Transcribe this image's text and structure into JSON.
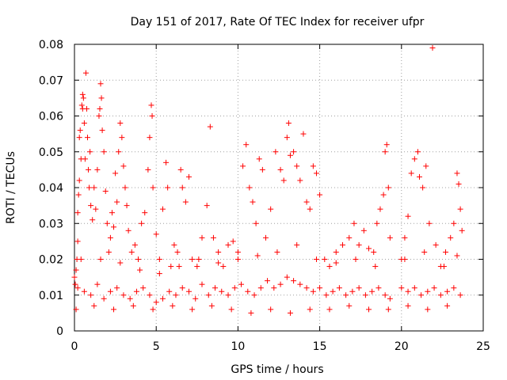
{
  "chart_data": {
    "type": "scatter",
    "title": "Day 151 of 2017, Rate Of TEC Index for receiver ufpr",
    "xlabel": "GPS time / hours",
    "ylabel": "ROTI / TECUs",
    "xlim": [
      0,
      25
    ],
    "ylim": [
      0,
      0.08
    ],
    "xticks": [
      0,
      5,
      10,
      15,
      20,
      25
    ],
    "xtick_labels": [
      "0",
      "5",
      "10",
      "15",
      "20",
      "25"
    ],
    "yticks": [
      0,
      0.01,
      0.02,
      0.03,
      0.04,
      0.05,
      0.06,
      0.07,
      0.08
    ],
    "ytick_labels": [
      "0",
      "0.01",
      "0.02",
      "0.03",
      "0.04",
      "0.05",
      "0.06",
      "0.07",
      "0.08"
    ],
    "grid": true,
    "marker": "plus",
    "series": [
      {
        "color": "#ff0000",
        "points": [
          [
            0.0,
            0.015
          ],
          [
            0.05,
            0.013
          ],
          [
            0.1,
            0.017
          ],
          [
            0.15,
            0.02
          ],
          [
            0.2,
            0.025
          ],
          [
            0.2,
            0.033
          ],
          [
            0.25,
            0.038
          ],
          [
            0.3,
            0.042
          ],
          [
            0.3,
            0.054
          ],
          [
            0.35,
            0.056
          ],
          [
            0.4,
            0.048
          ],
          [
            0.45,
            0.063
          ],
          [
            0.5,
            0.062
          ],
          [
            0.5,
            0.066
          ],
          [
            0.55,
            0.065
          ],
          [
            0.6,
            0.058
          ],
          [
            0.65,
            0.048
          ],
          [
            0.7,
            0.072
          ],
          [
            0.75,
            0.062
          ],
          [
            0.8,
            0.054
          ],
          [
            0.85,
            0.045
          ],
          [
            0.9,
            0.04
          ],
          [
            0.95,
            0.05
          ],
          [
            1.0,
            0.035
          ],
          [
            1.1,
            0.031
          ],
          [
            1.2,
            0.04
          ],
          [
            1.3,
            0.034
          ],
          [
            1.4,
            0.045
          ],
          [
            1.5,
            0.06
          ],
          [
            1.55,
            0.062
          ],
          [
            1.6,
            0.069
          ],
          [
            1.65,
            0.065
          ],
          [
            1.7,
            0.056
          ],
          [
            1.8,
            0.05
          ],
          [
            1.9,
            0.039
          ],
          [
            2.0,
            0.03
          ],
          [
            2.1,
            0.022
          ],
          [
            2.2,
            0.026
          ],
          [
            2.3,
            0.033
          ],
          [
            2.4,
            0.029
          ],
          [
            2.5,
            0.044
          ],
          [
            2.6,
            0.036
          ],
          [
            2.7,
            0.05
          ],
          [
            2.8,
            0.058
          ],
          [
            2.9,
            0.054
          ],
          [
            3.0,
            0.046
          ],
          [
            3.1,
            0.04
          ],
          [
            3.2,
            0.035
          ],
          [
            3.3,
            0.028
          ],
          [
            3.5,
            0.022
          ],
          [
            3.7,
            0.024
          ],
          [
            3.9,
            0.02
          ],
          [
            4.1,
            0.03
          ],
          [
            4.3,
            0.033
          ],
          [
            4.5,
            0.045
          ],
          [
            4.6,
            0.054
          ],
          [
            4.7,
            0.063
          ],
          [
            4.75,
            0.06
          ],
          [
            4.8,
            0.04
          ],
          [
            5.0,
            0.027
          ],
          [
            5.2,
            0.02
          ],
          [
            5.4,
            0.034
          ],
          [
            5.6,
            0.047
          ],
          [
            5.7,
            0.04
          ],
          [
            5.9,
            0.018
          ],
          [
            6.1,
            0.024
          ],
          [
            6.3,
            0.022
          ],
          [
            6.5,
            0.045
          ],
          [
            6.6,
            0.04
          ],
          [
            6.8,
            0.036
          ],
          [
            7.0,
            0.043
          ],
          [
            7.2,
            0.02
          ],
          [
            7.5,
            0.018
          ],
          [
            7.8,
            0.026
          ],
          [
            8.1,
            0.035
          ],
          [
            8.3,
            0.057
          ],
          [
            8.5,
            0.026
          ],
          [
            8.8,
            0.022
          ],
          [
            9.1,
            0.018
          ],
          [
            9.4,
            0.024
          ],
          [
            9.7,
            0.025
          ],
          [
            10.0,
            0.022
          ],
          [
            10.3,
            0.046
          ],
          [
            10.5,
            0.052
          ],
          [
            10.7,
            0.04
          ],
          [
            10.9,
            0.036
          ],
          [
            11.1,
            0.03
          ],
          [
            11.3,
            0.048
          ],
          [
            11.5,
            0.045
          ],
          [
            11.7,
            0.026
          ],
          [
            12.0,
            0.034
          ],
          [
            12.3,
            0.05
          ],
          [
            12.6,
            0.045
          ],
          [
            12.8,
            0.042
          ],
          [
            13.0,
            0.054
          ],
          [
            13.1,
            0.058
          ],
          [
            13.2,
            0.049
          ],
          [
            13.4,
            0.05
          ],
          [
            13.6,
            0.046
          ],
          [
            13.8,
            0.042
          ],
          [
            14.0,
            0.055
          ],
          [
            14.2,
            0.036
          ],
          [
            14.4,
            0.034
          ],
          [
            14.6,
            0.046
          ],
          [
            14.8,
            0.044
          ],
          [
            15.0,
            0.038
          ],
          [
            15.3,
            0.02
          ],
          [
            15.6,
            0.018
          ],
          [
            16.0,
            0.022
          ],
          [
            16.4,
            0.024
          ],
          [
            16.8,
            0.026
          ],
          [
            17.1,
            0.03
          ],
          [
            17.4,
            0.024
          ],
          [
            17.7,
            0.028
          ],
          [
            18.0,
            0.023
          ],
          [
            18.3,
            0.022
          ],
          [
            18.5,
            0.03
          ],
          [
            18.7,
            0.034
          ],
          [
            18.9,
            0.038
          ],
          [
            19.0,
            0.05
          ],
          [
            19.1,
            0.052
          ],
          [
            19.2,
            0.04
          ],
          [
            19.3,
            0.026
          ],
          [
            20.0,
            0.02
          ],
          [
            20.2,
            0.026
          ],
          [
            20.4,
            0.032
          ],
          [
            20.6,
            0.044
          ],
          [
            20.8,
            0.048
          ],
          [
            21.0,
            0.05
          ],
          [
            21.1,
            0.043
          ],
          [
            21.3,
            0.04
          ],
          [
            21.5,
            0.046
          ],
          [
            21.7,
            0.03
          ],
          [
            21.9,
            0.079
          ],
          [
            22.1,
            0.024
          ],
          [
            22.4,
            0.018
          ],
          [
            22.7,
            0.022
          ],
          [
            23.0,
            0.026
          ],
          [
            23.2,
            0.03
          ],
          [
            23.4,
            0.044
          ],
          [
            23.5,
            0.041
          ],
          [
            23.6,
            0.034
          ],
          [
            23.7,
            0.028
          ],
          [
            0.2,
            0.012
          ],
          [
            0.6,
            0.011
          ],
          [
            1.0,
            0.01
          ],
          [
            1.4,
            0.013
          ],
          [
            1.8,
            0.009
          ],
          [
            2.2,
            0.011
          ],
          [
            2.6,
            0.012
          ],
          [
            3.0,
            0.01
          ],
          [
            3.4,
            0.009
          ],
          [
            3.8,
            0.011
          ],
          [
            4.2,
            0.012
          ],
          [
            4.6,
            0.01
          ],
          [
            5.0,
            0.008
          ],
          [
            5.4,
            0.009
          ],
          [
            5.8,
            0.011
          ],
          [
            6.2,
            0.01
          ],
          [
            6.6,
            0.012
          ],
          [
            7.0,
            0.011
          ],
          [
            7.4,
            0.009
          ],
          [
            7.8,
            0.013
          ],
          [
            8.2,
            0.01
          ],
          [
            8.6,
            0.012
          ],
          [
            9.0,
            0.011
          ],
          [
            9.4,
            0.01
          ],
          [
            9.8,
            0.012
          ],
          [
            10.2,
            0.013
          ],
          [
            10.6,
            0.011
          ],
          [
            11.0,
            0.01
          ],
          [
            11.4,
            0.012
          ],
          [
            11.8,
            0.014
          ],
          [
            12.2,
            0.012
          ],
          [
            12.6,
            0.013
          ],
          [
            13.0,
            0.015
          ],
          [
            13.4,
            0.014
          ],
          [
            13.8,
            0.013
          ],
          [
            14.2,
            0.012
          ],
          [
            14.6,
            0.011
          ],
          [
            15.0,
            0.012
          ],
          [
            15.4,
            0.01
          ],
          [
            15.8,
            0.011
          ],
          [
            16.2,
            0.012
          ],
          [
            16.6,
            0.01
          ],
          [
            17.0,
            0.011
          ],
          [
            17.4,
            0.012
          ],
          [
            17.8,
            0.01
          ],
          [
            18.2,
            0.011
          ],
          [
            18.6,
            0.012
          ],
          [
            19.0,
            0.01
          ],
          [
            19.3,
            0.009
          ],
          [
            20.0,
            0.012
          ],
          [
            20.4,
            0.011
          ],
          [
            20.8,
            0.012
          ],
          [
            21.2,
            0.01
          ],
          [
            21.6,
            0.011
          ],
          [
            22.0,
            0.012
          ],
          [
            22.4,
            0.01
          ],
          [
            22.8,
            0.011
          ],
          [
            23.2,
            0.012
          ],
          [
            23.6,
            0.01
          ],
          [
            0.1,
            0.006
          ],
          [
            1.2,
            0.007
          ],
          [
            2.4,
            0.006
          ],
          [
            3.6,
            0.007
          ],
          [
            4.8,
            0.006
          ],
          [
            6.0,
            0.007
          ],
          [
            7.2,
            0.006
          ],
          [
            8.4,
            0.007
          ],
          [
            9.6,
            0.006
          ],
          [
            10.8,
            0.005
          ],
          [
            12.0,
            0.006
          ],
          [
            13.2,
            0.005
          ],
          [
            14.4,
            0.006
          ],
          [
            15.6,
            0.006
          ],
          [
            16.8,
            0.007
          ],
          [
            18.0,
            0.006
          ],
          [
            19.2,
            0.006
          ],
          [
            20.4,
            0.007
          ],
          [
            21.6,
            0.006
          ],
          [
            22.8,
            0.007
          ],
          [
            0.4,
            0.02
          ],
          [
            1.6,
            0.02
          ],
          [
            2.8,
            0.019
          ],
          [
            4.0,
            0.017
          ],
          [
            5.2,
            0.016
          ],
          [
            6.4,
            0.018
          ],
          [
            7.6,
            0.02
          ],
          [
            8.8,
            0.019
          ],
          [
            10.0,
            0.02
          ],
          [
            11.2,
            0.021
          ],
          [
            12.4,
            0.022
          ],
          [
            13.6,
            0.024
          ],
          [
            14.8,
            0.02
          ],
          [
            16.0,
            0.019
          ],
          [
            17.2,
            0.02
          ],
          [
            18.4,
            0.018
          ],
          [
            20.2,
            0.02
          ],
          [
            21.4,
            0.022
          ],
          [
            22.6,
            0.018
          ],
          [
            23.4,
            0.021
          ]
        ]
      }
    ]
  }
}
